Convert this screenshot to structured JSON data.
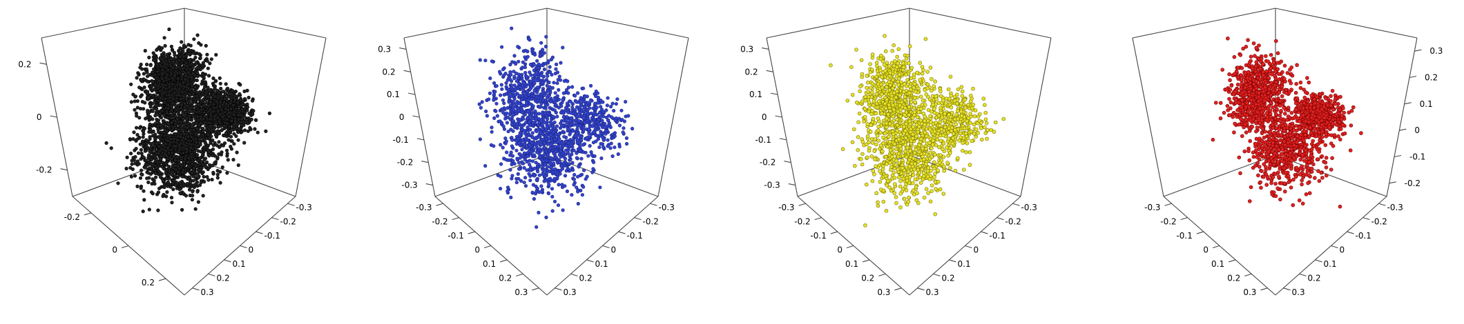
{
  "chart_data": [
    {
      "type": "scatter",
      "projection": "3d",
      "point_color": "#222222",
      "point_edge": "#000000",
      "axes": {
        "z_ticks": [
          "0.2",
          "0",
          "-0.2"
        ],
        "x_ticks": [
          "-0.2",
          "0",
          "0.2"
        ],
        "y_ticks": [
          "-0.3",
          "-0.2",
          "-0.1",
          "0",
          "0.1",
          "0.2",
          "0.3"
        ]
      },
      "clusters": [
        {
          "x": -0.06,
          "y": 0.0,
          "z": 0.18,
          "sx": 0.05,
          "sy": 0.07,
          "sz": 0.07,
          "n": 1300
        },
        {
          "x": -0.02,
          "y": 0.02,
          "z": -0.1,
          "sx": 0.08,
          "sy": 0.09,
          "sz": 0.09,
          "n": 1300
        },
        {
          "x": 0.1,
          "y": -0.12,
          "z": 0.07,
          "sx": 0.07,
          "sy": 0.05,
          "sz": 0.04,
          "n": 900
        }
      ]
    },
    {
      "type": "scatter",
      "projection": "3d",
      "point_color": "#3344cc",
      "point_edge": "#1a237e",
      "axes": {
        "z_ticks": [
          "0.3",
          "0.2",
          "0.1",
          "0",
          "-0.1",
          "-0.2",
          "-0.3"
        ],
        "x_ticks": [
          "-0.3",
          "-0.2",
          "-0.1",
          "0",
          "0.1",
          "0.2",
          "0.3"
        ],
        "y_ticks": [
          "-0.3",
          "-0.2",
          "-0.1",
          "0",
          "0.1",
          "0.2",
          "0.3"
        ]
      },
      "clusters": [
        {
          "x": -0.08,
          "y": 0.02,
          "z": 0.12,
          "sx": 0.07,
          "sy": 0.08,
          "sz": 0.1,
          "n": 600
        },
        {
          "x": 0.0,
          "y": 0.0,
          "z": -0.12,
          "sx": 0.09,
          "sy": 0.09,
          "sz": 0.09,
          "n": 600
        },
        {
          "x": 0.14,
          "y": -0.12,
          "z": 0.04,
          "sx": 0.08,
          "sy": 0.06,
          "sz": 0.06,
          "n": 350
        }
      ]
    },
    {
      "type": "scatter",
      "projection": "3d",
      "point_color": "#e6e22a",
      "point_edge": "#7a7400",
      "axes": {
        "z_ticks": [
          "0.3",
          "0.2",
          "0.1",
          "0",
          "-0.1",
          "-0.2",
          "-0.3"
        ],
        "x_ticks": [
          "-0.3",
          "-0.2",
          "-0.1",
          "0",
          "0.1",
          "0.2",
          "0.3"
        ],
        "y_ticks": [
          "-0.3",
          "-0.2",
          "-0.1",
          "0",
          "0.1",
          "0.2",
          "0.3"
        ]
      },
      "clusters": [
        {
          "x": -0.08,
          "y": 0.02,
          "z": 0.12,
          "sx": 0.07,
          "sy": 0.08,
          "sz": 0.1,
          "n": 600
        },
        {
          "x": 0.0,
          "y": 0.0,
          "z": -0.12,
          "sx": 0.09,
          "sy": 0.09,
          "sz": 0.09,
          "n": 600
        },
        {
          "x": 0.14,
          "y": -0.12,
          "z": 0.04,
          "sx": 0.08,
          "sy": 0.06,
          "sz": 0.06,
          "n": 350
        }
      ]
    },
    {
      "type": "scatter",
      "projection": "3d",
      "point_color": "#e02222",
      "point_edge": "#7a0000",
      "axes": {
        "z_ticks": [
          "0.3",
          "0.2",
          "0.1",
          "0",
          "-0.1",
          "-0.2"
        ],
        "x_ticks": [
          "-0.3",
          "-0.2",
          "-0.1",
          "0",
          "0.1",
          "0.2",
          "0.3"
        ],
        "y_ticks": [
          "-0.3",
          "-0.2",
          "-0.1",
          "0",
          "0.1",
          "0.2",
          "0.3"
        ]
      },
      "clusters": [
        {
          "x": -0.08,
          "y": 0.02,
          "z": 0.14,
          "sx": 0.06,
          "sy": 0.07,
          "sz": 0.08,
          "n": 700
        },
        {
          "x": 0.02,
          "y": -0.04,
          "z": -0.1,
          "sx": 0.08,
          "sy": 0.08,
          "sz": 0.08,
          "n": 600
        },
        {
          "x": 0.12,
          "y": -0.14,
          "z": 0.05,
          "sx": 0.06,
          "sy": 0.05,
          "sz": 0.04,
          "n": 500
        }
      ]
    }
  ]
}
